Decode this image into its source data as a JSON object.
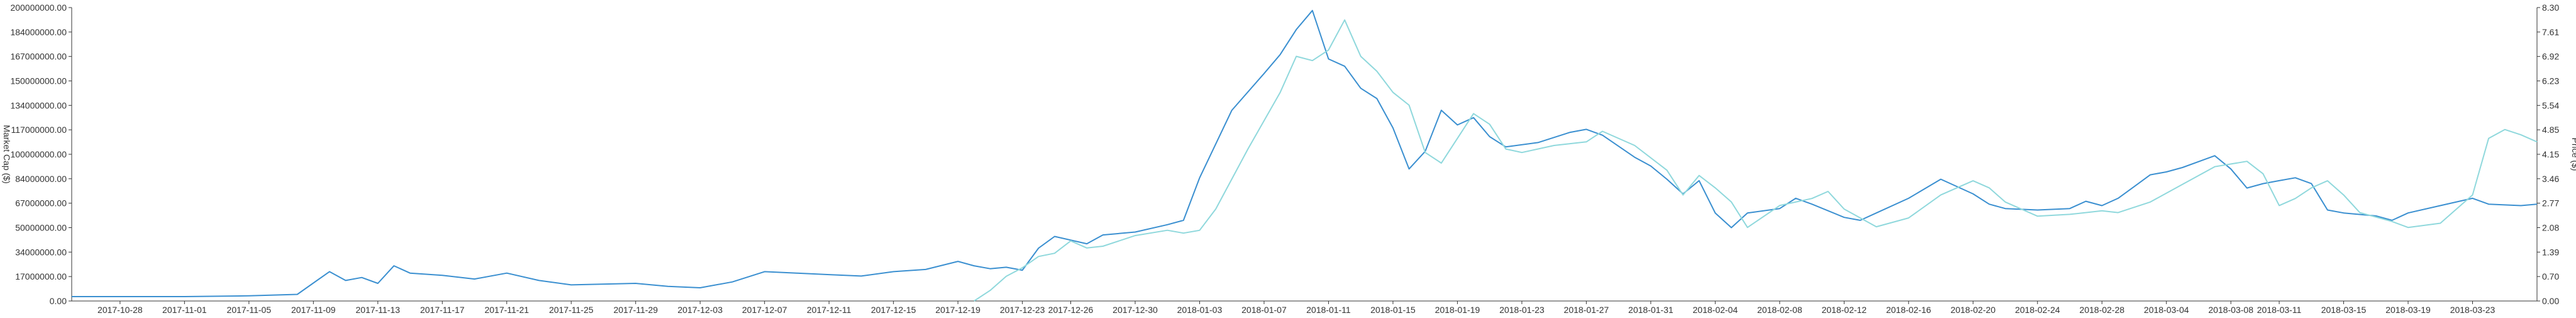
{
  "chart_data": {
    "type": "line",
    "x": [
      "2017-10-28",
      "2017-11-01",
      "2017-11-05",
      "2017-11-09",
      "2017-11-13",
      "2017-11-17",
      "2017-11-21",
      "2017-11-25",
      "2017-11-29",
      "2017-12-03",
      "2017-12-07",
      "2017-12-11",
      "2017-12-15",
      "2017-12-19",
      "2017-12-23",
      "2017-12-26",
      "2017-12-30",
      "2018-01-03",
      "2018-01-07",
      "2018-01-11",
      "2018-01-15",
      "2018-01-19",
      "2018-01-23",
      "2018-01-27",
      "2018-01-31",
      "2018-02-04",
      "2018-02-08",
      "2018-02-12",
      "2018-02-16",
      "2018-02-20",
      "2018-02-24",
      "2018-02-28",
      "2018-03-04",
      "2018-03-08",
      "2018-03-11",
      "2018-03-15",
      "2018-03-19",
      "2018-03-23"
    ],
    "xlim": [
      "2017-10-25",
      "2018-03-27"
    ],
    "y_left": {
      "label": "Market Cap ($)",
      "ticks": [
        "0.00",
        "17000000.00",
        "34000000.00",
        "50000000.00",
        "67000000.00",
        "84000000.00",
        "100000000.00",
        "117000000.00",
        "134000000.00",
        "150000000.00",
        "167000000.00",
        "184000000.00",
        "200000000.00"
      ],
      "ylim": [
        0,
        200000000
      ]
    },
    "y_right": {
      "label": "Price ($)",
      "ticks": [
        "0.00",
        "0.70",
        "1.39",
        "2.08",
        "2.77",
        "3.46",
        "4.15",
        "4.85",
        "5.54",
        "6.23",
        "6.92",
        "7.61",
        "8.30"
      ],
      "ylim": [
        0,
        8.3
      ]
    },
    "series": [
      {
        "axis": "left",
        "color": "#3a8fd0",
        "points": [
          [
            "2017-10-25",
            3000000
          ],
          [
            "2017-11-01",
            3000000
          ],
          [
            "2017-11-05",
            3500000
          ],
          [
            "2017-11-08",
            4500000
          ],
          [
            "2017-11-10",
            20000000
          ],
          [
            "2017-11-11",
            14000000
          ],
          [
            "2017-11-12",
            16000000
          ],
          [
            "2017-11-13",
            12000000
          ],
          [
            "2017-11-14",
            24000000
          ],
          [
            "2017-11-15",
            19000000
          ],
          [
            "2017-11-17",
            17500000
          ],
          [
            "2017-11-19",
            15000000
          ],
          [
            "2017-11-21",
            19000000
          ],
          [
            "2017-11-23",
            14000000
          ],
          [
            "2017-11-25",
            11000000
          ],
          [
            "2017-11-29",
            12000000
          ],
          [
            "2017-12-01",
            10000000
          ],
          [
            "2017-12-03",
            9000000
          ],
          [
            "2017-12-05",
            13000000
          ],
          [
            "2017-12-07",
            20000000
          ],
          [
            "2017-12-09",
            19000000
          ],
          [
            "2017-12-11",
            18000000
          ],
          [
            "2017-12-13",
            17000000
          ],
          [
            "2017-12-15",
            20000000
          ],
          [
            "2017-12-17",
            21500000
          ],
          [
            "2017-12-19",
            27000000
          ],
          [
            "2017-12-20",
            24000000
          ],
          [
            "2017-12-21",
            22000000
          ],
          [
            "2017-12-22",
            23000000
          ],
          [
            "2017-12-23",
            21000000
          ],
          [
            "2017-12-24",
            36000000
          ],
          [
            "2017-12-25",
            44000000
          ],
          [
            "2017-12-27",
            39000000
          ],
          [
            "2017-12-28",
            45000000
          ],
          [
            "2017-12-30",
            47000000
          ],
          [
            "2018-01-01",
            52000000
          ],
          [
            "2018-01-02",
            55000000
          ],
          [
            "2018-01-03",
            84000000
          ],
          [
            "2018-01-05",
            130000000
          ],
          [
            "2018-01-07",
            155000000
          ],
          [
            "2018-01-08",
            168000000
          ],
          [
            "2018-01-09",
            185000000
          ],
          [
            "2018-01-10",
            198000000
          ],
          [
            "2018-01-11",
            165000000
          ],
          [
            "2018-01-12",
            160000000
          ],
          [
            "2018-01-13",
            145000000
          ],
          [
            "2018-01-14",
            138000000
          ],
          [
            "2018-01-15",
            118000000
          ],
          [
            "2018-01-16",
            90000000
          ],
          [
            "2018-01-17",
            102000000
          ],
          [
            "2018-01-18",
            130000000
          ],
          [
            "2018-01-19",
            120000000
          ],
          [
            "2018-01-20",
            125000000
          ],
          [
            "2018-01-21",
            112000000
          ],
          [
            "2018-01-22",
            105000000
          ],
          [
            "2018-01-24",
            108000000
          ],
          [
            "2018-01-26",
            115000000
          ],
          [
            "2018-01-27",
            117000000
          ],
          [
            "2018-01-28",
            113000000
          ],
          [
            "2018-01-30",
            98000000
          ],
          [
            "2018-01-31",
            92000000
          ],
          [
            "2018-02-01",
            83000000
          ],
          [
            "2018-02-02",
            73000000
          ],
          [
            "2018-02-03",
            82000000
          ],
          [
            "2018-02-04",
            60000000
          ],
          [
            "2018-02-05",
            50000000
          ],
          [
            "2018-02-06",
            60000000
          ],
          [
            "2018-02-08",
            63000000
          ],
          [
            "2018-02-09",
            70000000
          ],
          [
            "2018-02-10",
            66000000
          ],
          [
            "2018-02-12",
            57000000
          ],
          [
            "2018-02-13",
            55000000
          ],
          [
            "2018-02-14",
            60000000
          ],
          [
            "2018-02-16",
            70000000
          ],
          [
            "2018-02-18",
            83000000
          ],
          [
            "2018-02-20",
            73000000
          ],
          [
            "2018-02-21",
            66000000
          ],
          [
            "2018-02-22",
            63000000
          ],
          [
            "2018-02-24",
            62000000
          ],
          [
            "2018-02-26",
            63000000
          ],
          [
            "2018-02-27",
            68000000
          ],
          [
            "2018-02-28",
            65000000
          ],
          [
            "2018-03-01",
            70000000
          ],
          [
            "2018-03-02",
            78000000
          ],
          [
            "2018-03-03",
            86000000
          ],
          [
            "2018-03-04",
            88000000
          ],
          [
            "2018-03-05",
            91000000
          ],
          [
            "2018-03-07",
            99000000
          ],
          [
            "2018-03-08",
            90000000
          ],
          [
            "2018-03-09",
            77000000
          ],
          [
            "2018-03-10",
            80000000
          ],
          [
            "2018-03-11",
            82000000
          ],
          [
            "2018-03-12",
            84000000
          ],
          [
            "2018-03-13",
            80000000
          ],
          [
            "2018-03-14",
            62000000
          ],
          [
            "2018-03-15",
            60000000
          ],
          [
            "2018-03-17",
            58000000
          ],
          [
            "2018-03-18",
            55000000
          ],
          [
            "2018-03-19",
            60000000
          ],
          [
            "2018-03-21",
            65000000
          ],
          [
            "2018-03-23",
            70000000
          ],
          [
            "2018-03-24",
            66000000
          ],
          [
            "2018-03-26",
            65000000
          ],
          [
            "2018-03-27",
            66000000
          ]
        ]
      },
      {
        "axis": "right",
        "color": "#8fd8dc",
        "points": [
          [
            "2017-12-20",
            0.0
          ],
          [
            "2017-12-21",
            0.3
          ],
          [
            "2017-12-22",
            0.7
          ],
          [
            "2017-12-23",
            0.94
          ],
          [
            "2017-12-24",
            1.26
          ],
          [
            "2017-12-25",
            1.35
          ],
          [
            "2017-12-26",
            1.7
          ],
          [
            "2017-12-27",
            1.5
          ],
          [
            "2017-12-28",
            1.55
          ],
          [
            "2017-12-30",
            1.85
          ],
          [
            "2018-01-01",
            2.0
          ],
          [
            "2018-01-02",
            1.92
          ],
          [
            "2018-01-03",
            2.0
          ],
          [
            "2018-01-04",
            2.6
          ],
          [
            "2018-01-06",
            4.3
          ],
          [
            "2018-01-08",
            5.9
          ],
          [
            "2018-01-09",
            6.92
          ],
          [
            "2018-01-10",
            6.8
          ],
          [
            "2018-01-11",
            7.1
          ],
          [
            "2018-01-12",
            7.95
          ],
          [
            "2018-01-13",
            6.92
          ],
          [
            "2018-01-14",
            6.5
          ],
          [
            "2018-01-15",
            5.9
          ],
          [
            "2018-01-16",
            5.54
          ],
          [
            "2018-01-17",
            4.2
          ],
          [
            "2018-01-18",
            3.9
          ],
          [
            "2018-01-19",
            4.6
          ],
          [
            "2018-01-20",
            5.3
          ],
          [
            "2018-01-21",
            5.0
          ],
          [
            "2018-01-22",
            4.3
          ],
          [
            "2018-01-23",
            4.2
          ],
          [
            "2018-01-25",
            4.4
          ],
          [
            "2018-01-27",
            4.5
          ],
          [
            "2018-01-28",
            4.8
          ],
          [
            "2018-01-30",
            4.4
          ],
          [
            "2018-02-01",
            3.7
          ],
          [
            "2018-02-02",
            3.0
          ],
          [
            "2018-02-03",
            3.55
          ],
          [
            "2018-02-04",
            3.2
          ],
          [
            "2018-02-05",
            2.8
          ],
          [
            "2018-02-06",
            2.08
          ],
          [
            "2018-02-08",
            2.7
          ],
          [
            "2018-02-10",
            2.9
          ],
          [
            "2018-02-11",
            3.1
          ],
          [
            "2018-02-12",
            2.6
          ],
          [
            "2018-02-14",
            2.1
          ],
          [
            "2018-02-16",
            2.35
          ],
          [
            "2018-02-18",
            3.0
          ],
          [
            "2018-02-20",
            3.4
          ],
          [
            "2018-02-21",
            3.2
          ],
          [
            "2018-02-22",
            2.8
          ],
          [
            "2018-02-24",
            2.4
          ],
          [
            "2018-02-26",
            2.45
          ],
          [
            "2018-02-28",
            2.55
          ],
          [
            "2018-03-01",
            2.5
          ],
          [
            "2018-03-03",
            2.8
          ],
          [
            "2018-03-05",
            3.3
          ],
          [
            "2018-03-07",
            3.8
          ],
          [
            "2018-03-09",
            3.95
          ],
          [
            "2018-03-10",
            3.6
          ],
          [
            "2018-03-11",
            2.7
          ],
          [
            "2018-03-12",
            2.9
          ],
          [
            "2018-03-13",
            3.2
          ],
          [
            "2018-03-14",
            3.4
          ],
          [
            "2018-03-15",
            3.0
          ],
          [
            "2018-03-16",
            2.5
          ],
          [
            "2018-03-18",
            2.25
          ],
          [
            "2018-03-19",
            2.08
          ],
          [
            "2018-03-21",
            2.2
          ],
          [
            "2018-03-22",
            2.6
          ],
          [
            "2018-03-23",
            3.0
          ],
          [
            "2018-03-24",
            4.6
          ],
          [
            "2018-03-25",
            4.85
          ],
          [
            "2018-03-26",
            4.7
          ],
          [
            "2018-03-27",
            4.5
          ]
        ]
      }
    ],
    "grid": false,
    "legend": "none"
  }
}
